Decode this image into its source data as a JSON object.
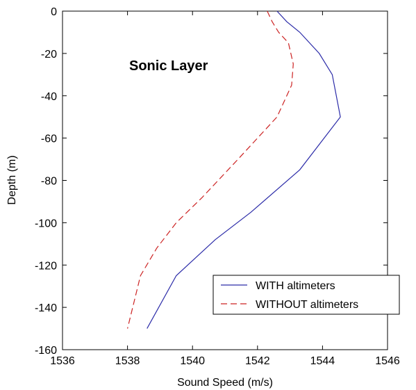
{
  "chart_data": {
    "type": "line",
    "title": "",
    "annotation": "Sonic Layer",
    "xlabel": "Sound Speed (m/s)",
    "ylabel": "Depth (m)",
    "xlim": [
      1536,
      1546
    ],
    "ylim": [
      -160,
      0
    ],
    "xticks": [
      1536,
      1538,
      1540,
      1542,
      1544,
      1546
    ],
    "yticks": [
      0,
      -20,
      -40,
      -60,
      -80,
      -100,
      -120,
      -140,
      -160
    ],
    "grid": false,
    "legend_position": "bottom-right",
    "series": [
      {
        "name": "WITH altimeters",
        "color": "#2b2ba8",
        "dash": "solid",
        "points": [
          [
            1542.6,
            0
          ],
          [
            1542.9,
            -5
          ],
          [
            1543.3,
            -10
          ],
          [
            1543.9,
            -20
          ],
          [
            1544.3,
            -30
          ],
          [
            1544.55,
            -50
          ],
          [
            1543.3,
            -75
          ],
          [
            1541.8,
            -95
          ],
          [
            1540.7,
            -108
          ],
          [
            1539.5,
            -125
          ],
          [
            1538.6,
            -150
          ]
        ]
      },
      {
        "name": "WITHOUT altimeters",
        "color": "#cc2222",
        "dash": "dashed",
        "points": [
          [
            1542.3,
            0
          ],
          [
            1542.45,
            -5
          ],
          [
            1542.65,
            -10
          ],
          [
            1542.95,
            -15
          ],
          [
            1543.1,
            -25
          ],
          [
            1543.05,
            -35
          ],
          [
            1542.6,
            -50
          ],
          [
            1541.4,
            -70
          ],
          [
            1540.3,
            -88
          ],
          [
            1539.5,
            -100
          ],
          [
            1538.9,
            -112
          ],
          [
            1538.4,
            -125
          ],
          [
            1538.0,
            -150
          ]
        ]
      }
    ]
  }
}
